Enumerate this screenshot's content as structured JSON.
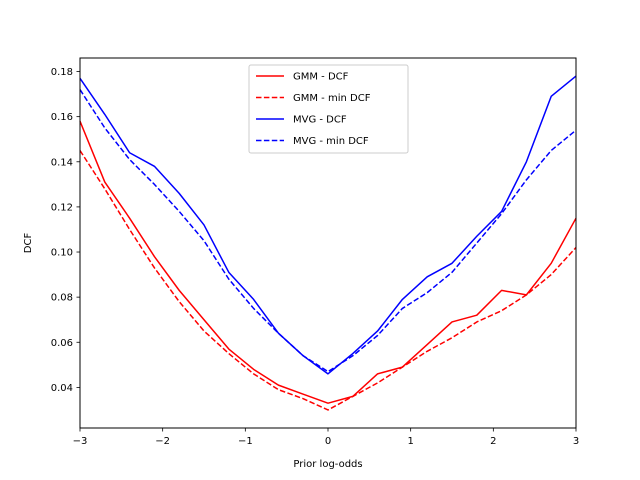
{
  "chart_data": {
    "type": "line",
    "title": "",
    "xlabel": "Prior log-odds",
    "ylabel": "DCF",
    "xlim": [
      -3,
      3
    ],
    "ylim": [
      0.022,
      0.186
    ],
    "xticks": [
      -3,
      -2,
      -1,
      0,
      1,
      2,
      3
    ],
    "xtick_labels": [
      "−3",
      "−2",
      "−1",
      "0",
      "1",
      "2",
      "3"
    ],
    "yticks": [
      0.04,
      0.06,
      0.08,
      0.1,
      0.12,
      0.14,
      0.16,
      0.18
    ],
    "ytick_labels": [
      "0.04",
      "0.06",
      "0.08",
      "0.10",
      "0.12",
      "0.14",
      "0.16",
      "0.18"
    ],
    "grid": false,
    "legend_position": "top-center",
    "x": [
      -3.0,
      -2.7,
      -2.4,
      -2.1,
      -1.8,
      -1.5,
      -1.2,
      -0.9,
      -0.6,
      -0.3,
      0.0,
      0.3,
      0.6,
      0.9,
      1.2,
      1.5,
      1.8,
      2.1,
      2.4,
      2.7,
      3.0
    ],
    "series": [
      {
        "name": "GMM - DCF",
        "color": "#ff0000",
        "dash": "solid",
        "values": [
          0.158,
          0.131,
          0.115,
          0.098,
          0.083,
          0.07,
          0.057,
          0.048,
          0.041,
          0.037,
          0.033,
          0.036,
          0.046,
          0.049,
          0.059,
          0.069,
          0.072,
          0.083,
          0.081,
          0.095,
          0.115
        ]
      },
      {
        "name": "GMM - min DCF",
        "color": "#ff0000",
        "dash": "dashed",
        "values": [
          0.145,
          0.128,
          0.11,
          0.093,
          0.078,
          0.065,
          0.055,
          0.046,
          0.039,
          0.035,
          0.03,
          0.036,
          0.042,
          0.049,
          0.056,
          0.062,
          0.069,
          0.074,
          0.081,
          0.09,
          0.102
        ]
      },
      {
        "name": "MVG - DCF",
        "color": "#0000ff",
        "dash": "solid",
        "values": [
          0.177,
          0.161,
          0.144,
          0.138,
          0.126,
          0.112,
          0.091,
          0.079,
          0.064,
          0.054,
          0.046,
          0.055,
          0.065,
          0.079,
          0.089,
          0.095,
          0.107,
          0.118,
          0.14,
          0.169,
          0.178
        ]
      },
      {
        "name": "MVG - min DCF",
        "color": "#0000ff",
        "dash": "dashed",
        "values": [
          0.172,
          0.155,
          0.141,
          0.13,
          0.118,
          0.105,
          0.088,
          0.075,
          0.064,
          0.054,
          0.047,
          0.054,
          0.063,
          0.075,
          0.082,
          0.091,
          0.104,
          0.117,
          0.132,
          0.145,
          0.154
        ]
      }
    ]
  }
}
